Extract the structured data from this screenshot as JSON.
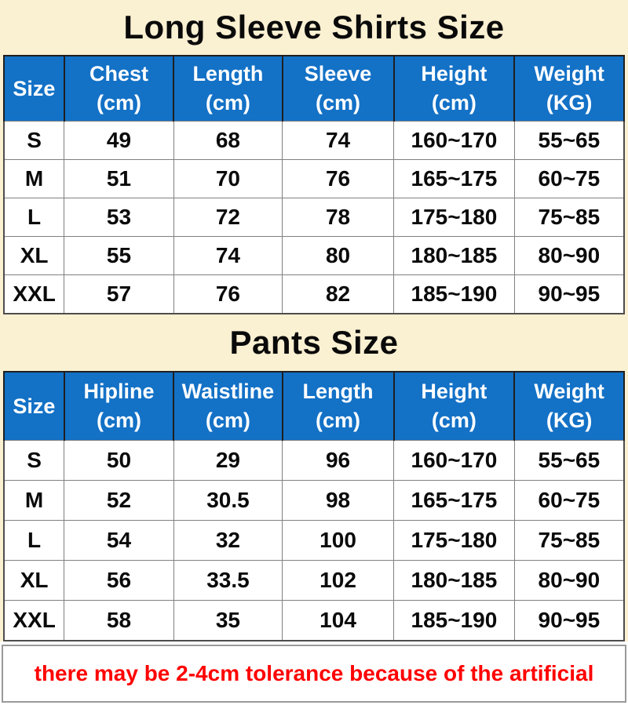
{
  "colors": {
    "background_cream": "#FAF0D2",
    "header_blue": "#1371C6",
    "note_red": "#FF0000",
    "grid_gray": "#808080",
    "border_dark": "#1F1F1F"
  },
  "tables": [
    {
      "title": "Long Sleeve Shirts Size",
      "headers": [
        {
          "label": "Size",
          "unit": ""
        },
        {
          "label": "Chest",
          "unit": "(cm)"
        },
        {
          "label": "Length",
          "unit": "(cm)"
        },
        {
          "label": "Sleeve",
          "unit": "(cm)"
        },
        {
          "label": "Height",
          "unit": "(cm)"
        },
        {
          "label": "Weight",
          "unit": "(KG)"
        }
      ],
      "rows": [
        [
          "S",
          "49",
          "68",
          "74",
          "160~170",
          "55~65"
        ],
        [
          "M",
          "51",
          "70",
          "76",
          "165~175",
          "60~75"
        ],
        [
          "L",
          "53",
          "72",
          "78",
          "175~180",
          "75~85"
        ],
        [
          "XL",
          "55",
          "74",
          "80",
          "180~185",
          "80~90"
        ],
        [
          "XXL",
          "57",
          "76",
          "82",
          "185~190",
          "90~95"
        ]
      ]
    },
    {
      "title": "Pants Size",
      "headers": [
        {
          "label": "Size",
          "unit": ""
        },
        {
          "label": "Hipline",
          "unit": "(cm)"
        },
        {
          "label": "Waistline",
          "unit": "(cm)"
        },
        {
          "label": "Length",
          "unit": "(cm)"
        },
        {
          "label": "Height",
          "unit": "(cm)"
        },
        {
          "label": "Weight",
          "unit": "(KG)"
        }
      ],
      "rows": [
        [
          "S",
          "50",
          "29",
          "96",
          "160~170",
          "55~65"
        ],
        [
          "M",
          "52",
          "30.5",
          "98",
          "165~175",
          "60~75"
        ],
        [
          "L",
          "54",
          "32",
          "100",
          "175~180",
          "75~85"
        ],
        [
          "XL",
          "56",
          "33.5",
          "102",
          "180~185",
          "80~90"
        ],
        [
          "XXL",
          "58",
          "35",
          "104",
          "185~190",
          "90~95"
        ]
      ]
    }
  ],
  "note": {
    "text": "there may be 2-4cm tolerance because of the artificial"
  }
}
